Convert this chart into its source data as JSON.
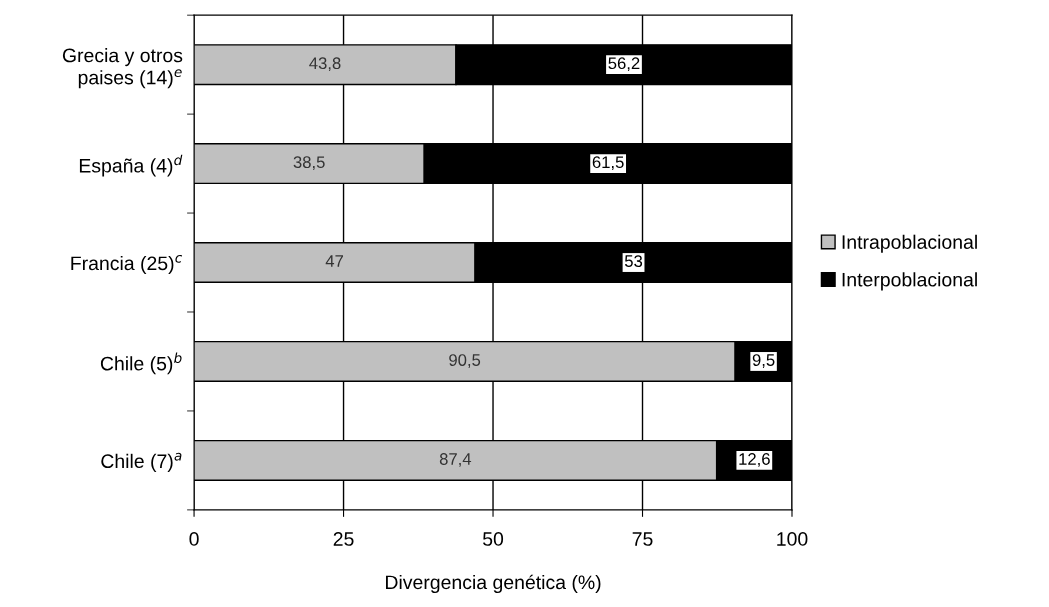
{
  "chart_data": {
    "type": "bar",
    "orientation": "horizontal",
    "stacked": true,
    "categories": [
      "Grecia y otros\npaises (14)$^{e}$",
      "España (4)$^{d}$",
      "Francia (25)$^{c}$",
      "Chile (5)$^{b}$",
      "Chile (7)$^{a}$"
    ],
    "series": [
      {
        "name": "Intrapoblacional",
        "color": "#c0c0c0",
        "values": [
          43.8,
          38.5,
          47,
          90.5,
          87.4
        ],
        "value_labels": [
          "43,8",
          "38,5",
          "47",
          "90,5",
          "87,4"
        ]
      },
      {
        "name": "Interpoblacional",
        "color": "#000000",
        "values": [
          56.2,
          61.5,
          53,
          9.5,
          12.6
        ],
        "value_labels": [
          "56,2",
          "61,5",
          "53",
          "9,5",
          "12,6"
        ]
      }
    ],
    "xlabel": "Divergencia genética (%)",
    "xlim": [
      0,
      100
    ],
    "xticks": [
      0,
      25,
      50,
      75,
      100
    ],
    "grid": "x",
    "legend": "right"
  }
}
